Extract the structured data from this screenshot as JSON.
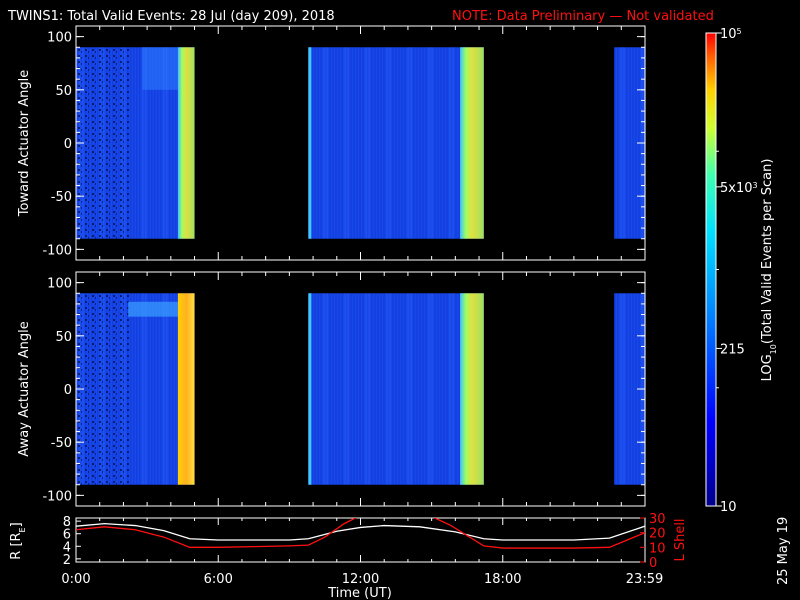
{
  "header": {
    "title": "TWINS1: Total Valid Events: 28 Jul (day 209), 2018",
    "note": "NOTE: Data Preliminary — Not validated"
  },
  "footer": {
    "date_stamp": "25 May 19"
  },
  "colors": {
    "background": "#000000",
    "axes": "#ffffff",
    "note": "#ff1010",
    "r_line": "#ffffff",
    "lshell_line": "#ff1010"
  },
  "chart_data": [
    {
      "type": "heatmap",
      "title": "",
      "xlabel": "",
      "ylabel": "Toward Actuator Angle",
      "xlim": [
        0,
        24
      ],
      "ylim": [
        -110,
        110
      ],
      "yticks": [
        100,
        50,
        0,
        -50,
        -100
      ],
      "data_extent": {
        "angle_range": [
          -90,
          90
        ]
      },
      "coverage_hours": [
        [
          0,
          5.0
        ],
        [
          9.8,
          17.2
        ],
        [
          22.7,
          24.0
        ]
      ],
      "saturated_hours": [
        [
          4.3,
          5.0
        ],
        [
          16.2,
          17.2
        ]
      ]
    },
    {
      "type": "heatmap",
      "title": "",
      "xlabel": "",
      "ylabel": "Away Actuator Angle",
      "xlim": [
        0,
        24
      ],
      "ylim": [
        -110,
        110
      ],
      "yticks": [
        100,
        50,
        0,
        -50,
        -100
      ],
      "data_extent": {
        "angle_range": [
          -90,
          90
        ]
      },
      "coverage_hours": [
        [
          0,
          5.0
        ],
        [
          9.8,
          17.2
        ],
        [
          22.7,
          24.0
        ]
      ],
      "saturated_hours": [
        [
          4.3,
          5.0
        ],
        [
          16.2,
          17.2
        ]
      ]
    },
    {
      "type": "line",
      "title": "",
      "xlabel": "Time (UT)",
      "ylabel_left": "R [R",
      "ylabel_left_sub": "E",
      "ylabel_right": "L Shell",
      "xticks": [
        "0:00",
        "6:00",
        "12:00",
        "18:00",
        "23:59"
      ],
      "xtick_hours": [
        0,
        6,
        12,
        18,
        23.98
      ],
      "ylim_left": [
        1.5,
        8.5
      ],
      "yticks_left": [
        8,
        6,
        4,
        2
      ],
      "ylim_right": [
        0,
        30
      ],
      "yticks_right": [
        30,
        20,
        10,
        0
      ],
      "series": [
        {
          "axis": "left",
          "x": [
            0,
            1.2,
            2.5,
            3.7,
            4.8,
            6,
            7.5,
            9,
            9.8,
            11,
            12,
            13,
            14.5,
            16,
            17.2,
            18,
            19,
            20,
            21,
            22.5,
            24
          ],
          "y": [
            7.2,
            7.6,
            7.3,
            6.5,
            5.2,
            5.0,
            5.0,
            5.0,
            5.2,
            6.4,
            7.0,
            7.3,
            7.1,
            6.3,
            5.2,
            5.0,
            5.0,
            5.0,
            5.0,
            5.3,
            7.2
          ]
        },
        {
          "axis": "right",
          "x": [
            0,
            1.2,
            2.5,
            3.7,
            4.8,
            6,
            7.5,
            9,
            9.8,
            10.5,
            11.3,
            11.9
          ],
          "y": [
            22,
            24,
            22,
            17,
            10,
            10,
            10.5,
            11,
            11.5,
            17,
            26,
            31
          ]
        },
        {
          "axis": "right",
          "x": [
            15.0,
            15.8,
            16.6,
            17.2,
            18,
            19,
            20,
            21,
            22.5,
            24
          ],
          "y": [
            31,
            25,
            17,
            11,
            9.5,
            9.5,
            9.5,
            9.5,
            10,
            20
          ]
        }
      ]
    }
  ],
  "colorbar": {
    "label": "LOG",
    "label_sub": "10",
    "label_rest": "(Total Valid Events per Scan)",
    "ticks": [
      {
        "value": 100000,
        "mantissa": "",
        "base": "10",
        "exp": "5"
      },
      {
        "value": 5000,
        "mantissa": "5x",
        "base": "10",
        "exp": "3"
      },
      {
        "value": 215,
        "mantissa": "",
        "base": "215",
        "exp": ""
      },
      {
        "value": 10,
        "mantissa": "",
        "base": "10",
        "exp": ""
      }
    ],
    "range": [
      10,
      100000
    ],
    "scale": "log"
  }
}
